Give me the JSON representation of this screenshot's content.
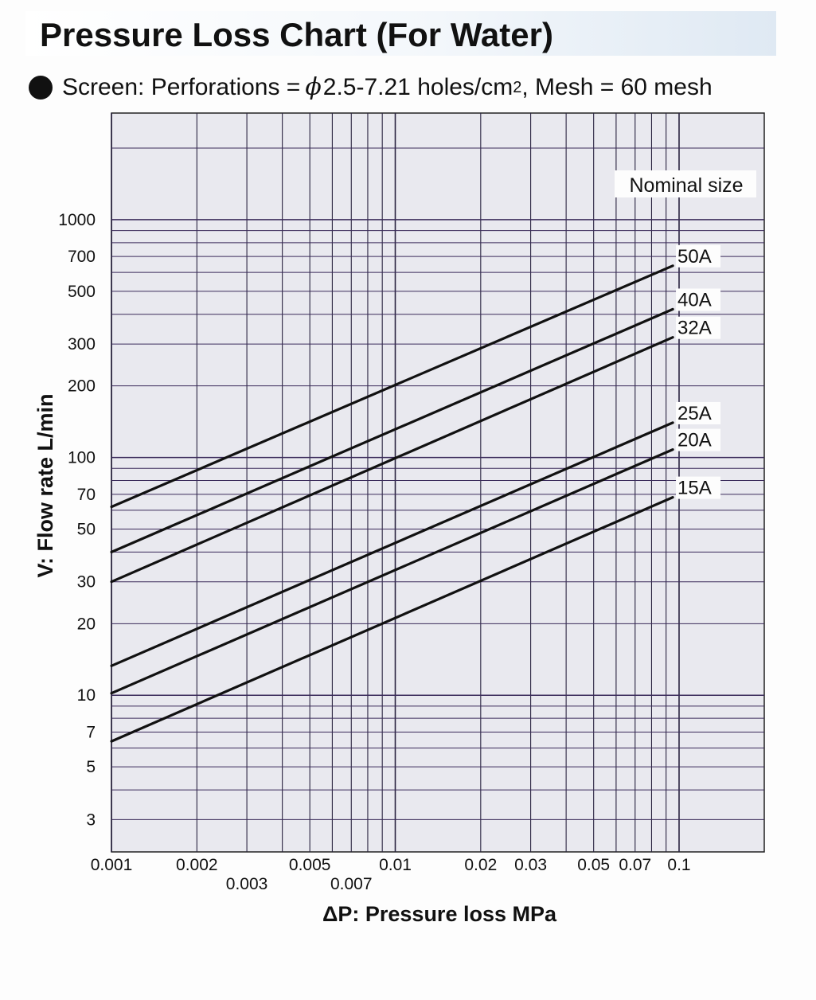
{
  "title": "Pressure Loss Chart (For Water)",
  "subtitle": {
    "prefix": "Screen: Perforations = ",
    "phi": "ϕ",
    "perforation": "2.5-7.21 holes/cm",
    "sup": "2",
    "rest": ", Mesh = 60 mesh"
  },
  "chart_data": {
    "type": "line",
    "xscale": "log",
    "yscale": "log",
    "xlabel": "ΔP: Pressure loss MPa",
    "ylabel": "V: Flow rate L/min",
    "xlim": [
      0.001,
      0.1
    ],
    "ylim": [
      2,
      2000
    ],
    "grid": true,
    "x_ticks": [
      {
        "value": 0.001,
        "label": "0.001"
      },
      {
        "value": 0.002,
        "label": "0.002"
      },
      {
        "value": 0.003,
        "label": "0.003"
      },
      {
        "value": 0.005,
        "label": "0.005"
      },
      {
        "value": 0.007,
        "label": "0.007"
      },
      {
        "value": 0.01,
        "label": "0.01"
      },
      {
        "value": 0.02,
        "label": "0.02"
      },
      {
        "value": 0.03,
        "label": "0.03"
      },
      {
        "value": 0.05,
        "label": "0.05"
      },
      {
        "value": 0.07,
        "label": "0.07"
      },
      {
        "value": 0.1,
        "label": "0.1"
      }
    ],
    "y_ticks": [
      {
        "value": 3,
        "label": "3"
      },
      {
        "value": 5,
        "label": "5"
      },
      {
        "value": 7,
        "label": "7"
      },
      {
        "value": 10,
        "label": "10"
      },
      {
        "value": 20,
        "label": "20"
      },
      {
        "value": 30,
        "label": "30"
      },
      {
        "value": 50,
        "label": "50"
      },
      {
        "value": 70,
        "label": "70"
      },
      {
        "value": 100,
        "label": "100"
      },
      {
        "value": 200,
        "label": "200"
      },
      {
        "value": 300,
        "label": "300"
      },
      {
        "value": 500,
        "label": "500"
      },
      {
        "value": 700,
        "label": "700"
      },
      {
        "value": 1000,
        "label": "1000"
      }
    ],
    "legend_title": "Nominal size",
    "legend_placement": "top-right",
    "series": [
      {
        "name": "50A",
        "x": [
          0.001,
          0.095
        ],
        "y": [
          62,
          640
        ]
      },
      {
        "name": "40A",
        "x": [
          0.001,
          0.095
        ],
        "y": [
          40,
          420
        ]
      },
      {
        "name": "32A",
        "x": [
          0.001,
          0.095
        ],
        "y": [
          30,
          320
        ]
      },
      {
        "name": "25A",
        "x": [
          0.001,
          0.095
        ],
        "y": [
          13.3,
          140
        ]
      },
      {
        "name": "20A",
        "x": [
          0.001,
          0.095
        ],
        "y": [
          10.2,
          108
        ]
      },
      {
        "name": "15A",
        "x": [
          0.001,
          0.095
        ],
        "y": [
          6.4,
          68
        ]
      }
    ]
  }
}
